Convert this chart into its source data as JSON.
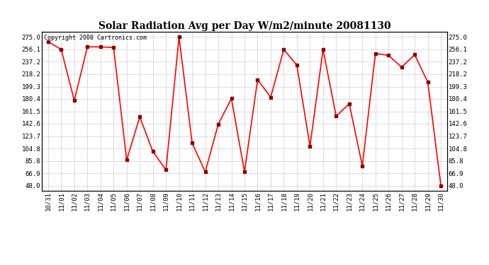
{
  "title": "Solar Radiation Avg per Day W/m2/minute 20081130",
  "copyright": "Copyright 2008 Cartronics.com",
  "line_color": "#ff0000",
  "marker_color": "#880000",
  "background_color": "#ffffff",
  "grid_color": "#bbbbbb",
  "dates": [
    "10/31",
    "11/01",
    "11/02",
    "11/03",
    "11/04",
    "11/05",
    "11/06",
    "11/07",
    "11/08",
    "11/09",
    "11/10",
    "11/11",
    "11/12",
    "11/13",
    "11/14",
    "11/15",
    "11/16",
    "11/17",
    "11/18",
    "11/19",
    "11/20",
    "11/21",
    "11/22",
    "11/23",
    "11/24",
    "11/25",
    "11/26",
    "11/27",
    "11/28",
    "11/29",
    "11/30"
  ],
  "values": [
    268.0,
    256.0,
    178.0,
    260.0,
    260.0,
    259.0,
    87.0,
    153.0,
    100.0,
    72.0,
    275.0,
    113.0,
    69.0,
    142.0,
    181.0,
    69.0,
    210.0,
    183.0,
    256.0,
    232.0,
    108.0,
    256.0,
    154.0,
    173.0,
    78.0,
    250.0,
    247.0,
    229.0,
    248.0,
    206.0,
    48.0
  ],
  "yticks": [
    48.0,
    66.9,
    85.8,
    104.8,
    123.7,
    142.6,
    161.5,
    180.4,
    199.3,
    218.2,
    237.2,
    256.1,
    275.0
  ],
  "ylim": [
    40,
    283
  ],
  "title_fontsize": 10,
  "tick_fontsize": 6.5,
  "copyright_fontsize": 6
}
